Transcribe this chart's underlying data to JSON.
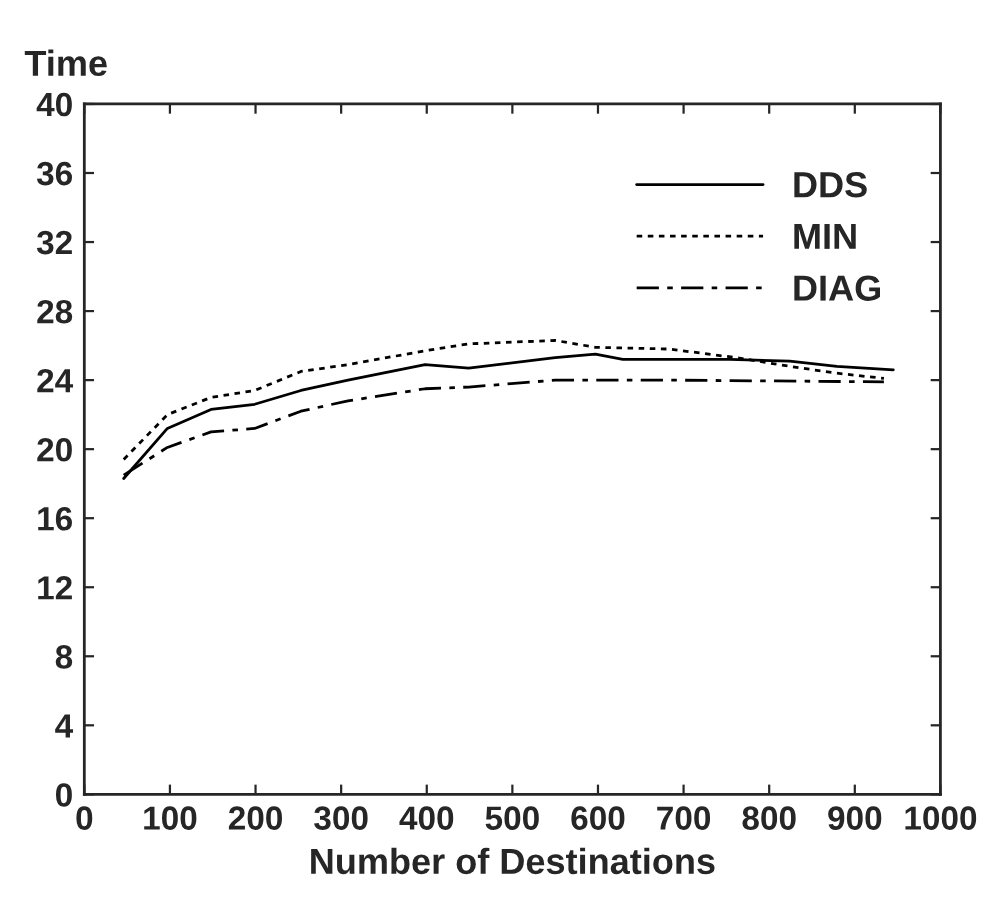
{
  "chart_data": {
    "type": "line",
    "ylabel": "Time",
    "xlabel": "Number of Destinations",
    "xlim": [
      0,
      1000
    ],
    "xticks": [
      0,
      100,
      200,
      300,
      400,
      500,
      600,
      700,
      800,
      900,
      1000
    ],
    "ylim": [
      0,
      40
    ],
    "yticks": [
      0,
      4,
      8,
      12,
      16,
      20,
      24,
      28,
      32,
      36,
      40
    ],
    "grid": false,
    "legend": "top right",
    "marker": "none",
    "series": [
      {
        "name": "DDS",
        "color": "#000000",
        "line_style": "solid",
        "x": [
          46,
          97,
          148,
          199,
          253,
          308,
          398,
          449,
          550,
          597,
          629,
          754,
          824,
          879,
          945
        ],
        "values": [
          18.3,
          21.2,
          22.3,
          22.6,
          23.4,
          24.0,
          24.9,
          24.7,
          25.3,
          25.5,
          25.2,
          25.2,
          25.1,
          24.8,
          24.6
        ]
      },
      {
        "name": "MIN",
        "color": "#000000",
        "line_style": "dotted",
        "x": [
          46,
          97,
          148,
          199,
          253,
          308,
          398,
          449,
          550,
          597,
          683,
          762,
          824,
          879,
          934
        ],
        "values": [
          19.4,
          22.0,
          23.0,
          23.4,
          24.5,
          24.9,
          25.7,
          26.1,
          26.3,
          25.9,
          25.8,
          25.3,
          24.8,
          24.4,
          24.1
        ]
      },
      {
        "name": "DIAG",
        "color": "#000000",
        "line_style": "dashdot",
        "x": [
          46,
          97,
          148,
          199,
          253,
          308,
          398,
          449,
          550,
          683,
          934
        ],
        "values": [
          18.5,
          20.1,
          21.0,
          21.2,
          22.2,
          22.8,
          23.5,
          23.6,
          24.0,
          24.0,
          23.9
        ]
      }
    ]
  }
}
